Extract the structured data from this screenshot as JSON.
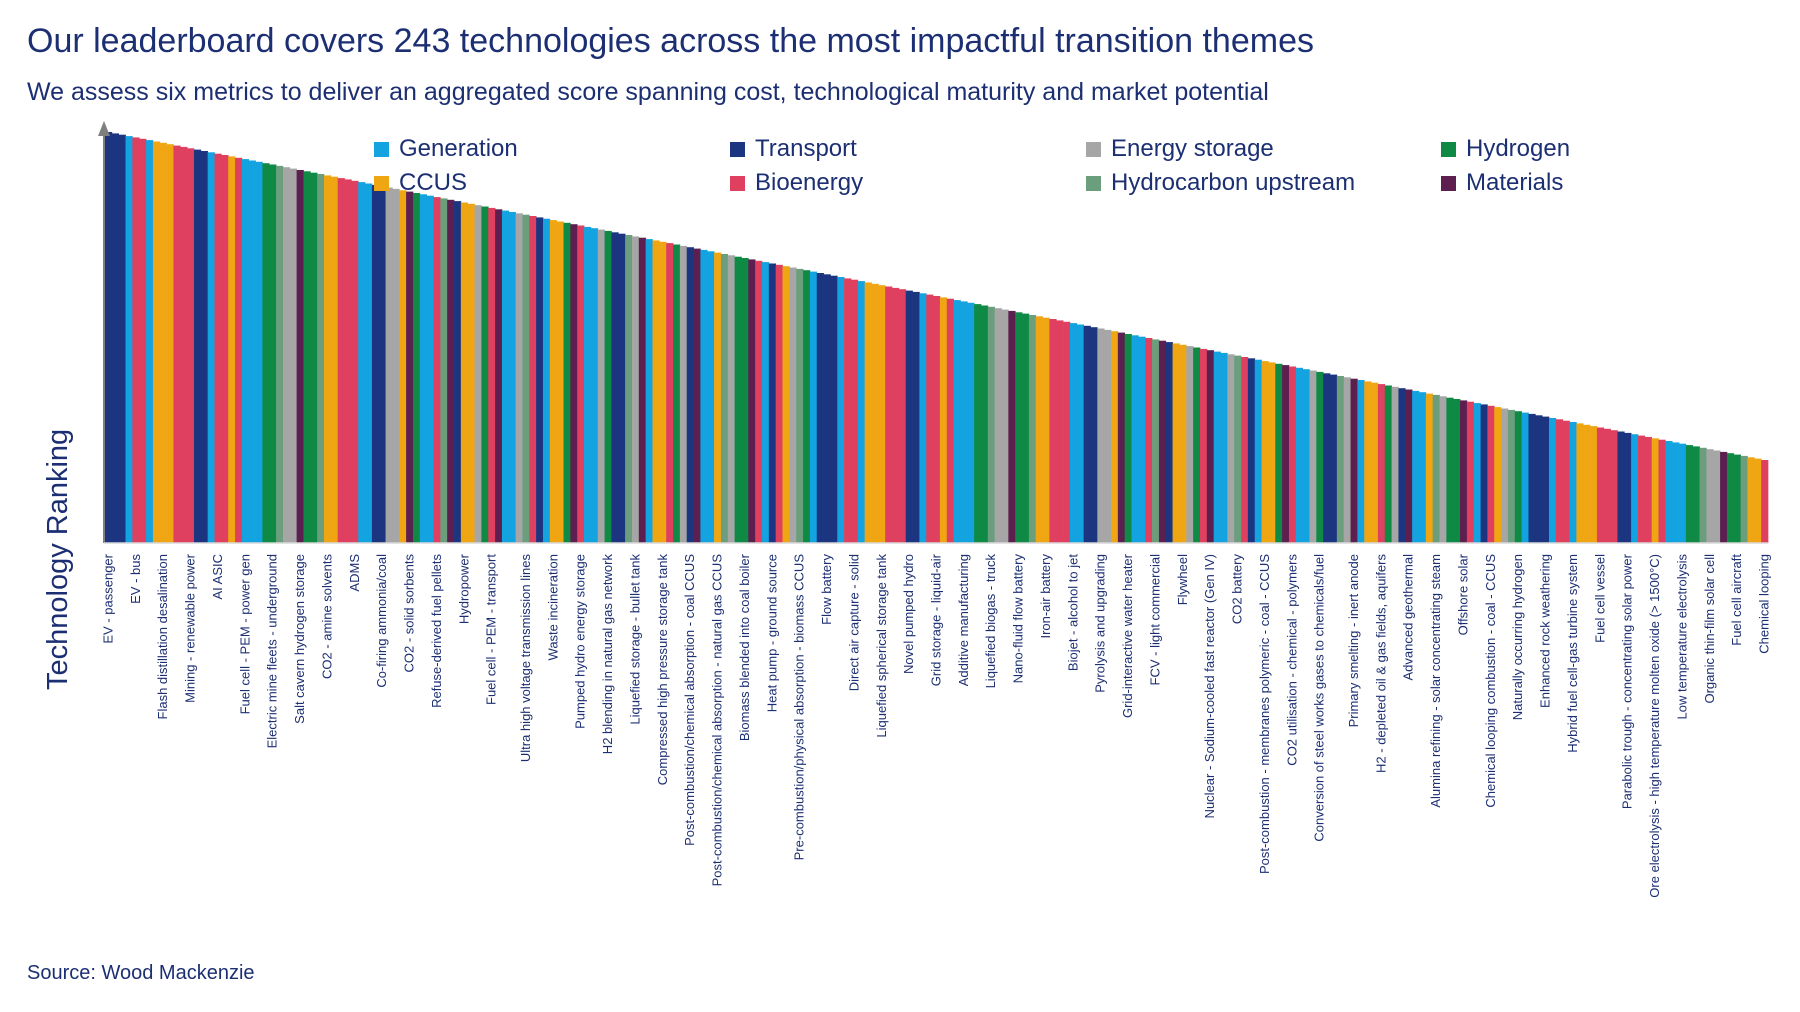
{
  "page": {
    "title": "Our leaderboard covers 243 technologies across the most impactful transition themes",
    "subtitle": "We assess six metrics to deliver an aggregated score spanning cost, technological maturity and market potential",
    "source": "Source: Wood Mackenzie"
  },
  "legend": [
    {
      "name": "Generation",
      "color": "#13a3e0"
    },
    {
      "name": "Transport",
      "color": "#1c3580"
    },
    {
      "name": "Energy storage",
      "color": "#a6a6a6"
    },
    {
      "name": "Hydrogen",
      "color": "#0e8a45"
    },
    {
      "name": "CCUS",
      "color": "#f0a613"
    },
    {
      "name": "Bioenergy",
      "color": "#e0405f"
    },
    {
      "name": "Hydrocarbon upstream",
      "color": "#6b9e7c"
    },
    {
      "name": "Materials",
      "color": "#5c1f4f"
    }
  ],
  "chart_data": {
    "type": "bar",
    "title": "Our leaderboard covers 243 technologies across the most impactful transition themes",
    "ylabel": "Technology Ranking",
    "total_technologies": 243,
    "legend_placement": "top",
    "grid": false,
    "categories": [
      "EV - passenger",
      "EV - bus",
      "Flash distillation desalination",
      "Mining - renewable power",
      "AI ASIC",
      "Fuel cell - PEM - power gen",
      "Electric mine fleets - underground",
      "Salt cavern hydrogen storage",
      "CO2 - amine solvents",
      "ADMS",
      "Co-firing ammonia/coal",
      "CO2 - solid sorbents",
      "Refuse-derived fuel pellets",
      "Hydropower",
      "Fuel cell - PEM - transport",
      "Ultra high voltage transmission lines",
      "Waste incineration",
      "Pumped hydro energy storage",
      "H2 blending in natural gas network",
      "Liquefied storage - bullet tank",
      "Compressed high pressure storage tank",
      "Post-combustion/chemical absorption - coal CCUS",
      "Post-combustion/chemical absorption - natural gas CCUS",
      "Biomass blended into coal boiler",
      "Heat pump - ground source",
      "Pre-combustion/physical absorption - biomass CCUS",
      "Flow battery",
      "Direct air capture - solid",
      "Liquefied spherical storage tank",
      "Novel pumped hydro",
      "Grid storage - liquid-air",
      "Additive manufacturing",
      "Liquefied biogas - truck",
      "Nano-fluid flow battery",
      "Iron-air battery",
      "Biojet - alcohol to jet",
      "Pyrolysis and upgrading",
      "Grid-interactive water heater",
      "FCV - light commercial",
      "Flywheel",
      "Nuclear - Sodium-cooled fast reactor (Gen IV)",
      "CO2 battery",
      "Post-combustion - membranes polymeric - coal - CCUS",
      "CO2 utilisation - chemical - polymers",
      "Conversion of steel works gases to chemicals/fuel",
      "Primary smelting - inert anode",
      "H2 - depleted oil & gas fields, aquifers",
      "Advanced geothermal",
      "Alumina refining - solar concentrating steam",
      "Offshore solar",
      "Chemical looping combustion - coal - CCUS",
      "Naturally occurring hydrogen",
      "Enhanced rock weathering",
      "Hybrid fuel cell-gas turbine system",
      "Fuel cell vessel",
      "Parabolic trough - concentrating solar power",
      "Ore electrolysis - high temperature molten oxide (> 1500°C)",
      "Low temperature electrolysis",
      "Organic thin-film solar cell",
      "Fuel cell aircraft",
      "Chemical looping"
    ]
  }
}
